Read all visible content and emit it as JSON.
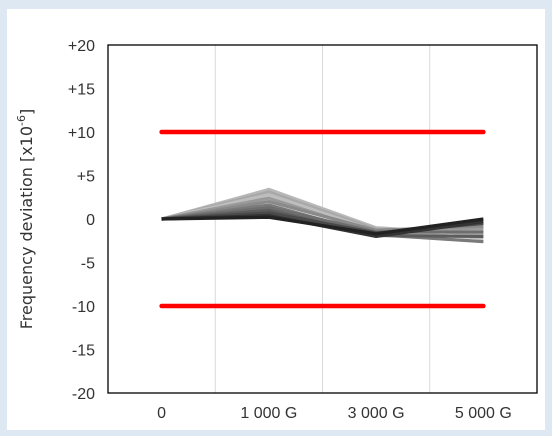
{
  "chart_data": {
    "type": "line",
    "ylabel_main": "Frequency deviation [x10",
    "ylabel_exp": "-6",
    "ylabel_end": "]",
    "xlabel": "",
    "categories": [
      "0",
      "1 000 G",
      "3 000 G",
      "5 000 G"
    ],
    "yticks": [
      "+20",
      "+15",
      "+10",
      "+5",
      "0",
      "-5",
      "-10",
      "-15",
      "-20"
    ],
    "ytick_values": [
      20,
      15,
      10,
      5,
      0,
      -5,
      -10,
      -15,
      -20
    ],
    "ylim": [
      -20,
      20
    ],
    "grid": "vertical",
    "limits": [
      {
        "values": [
          10,
          10,
          10,
          10
        ],
        "color": "#ff0000"
      },
      {
        "values": [
          -10,
          -10,
          -10,
          -10
        ],
        "color": "#ff0000"
      }
    ],
    "series": [
      {
        "values": [
          0,
          3.4,
          -1.0,
          -1.8
        ],
        "color": "#b8b8b8"
      },
      {
        "values": [
          0,
          3.1,
          -1.2,
          -1.3
        ],
        "color": "#a8a8a8"
      },
      {
        "values": [
          0,
          2.8,
          -1.4,
          -2.2
        ],
        "color": "#bdbdbd"
      },
      {
        "values": [
          0,
          2.4,
          -1.6,
          -1.0
        ],
        "color": "#999999"
      },
      {
        "values": [
          0,
          2.0,
          -1.3,
          -0.8
        ],
        "color": "#8a8a8a"
      },
      {
        "values": [
          0,
          1.6,
          -1.8,
          -2.6
        ],
        "color": "#7a7a7a"
      },
      {
        "values": [
          0,
          1.3,
          -1.5,
          -1.5
        ],
        "color": "#6e6e6e"
      },
      {
        "values": [
          0,
          1.0,
          -1.9,
          -2.0
        ],
        "color": "#5c5c5c"
      },
      {
        "values": [
          0,
          0.7,
          -1.6,
          -0.5
        ],
        "color": "#4a4a4a"
      },
      {
        "values": [
          0,
          0.4,
          -2.0,
          -0.3
        ],
        "color": "#333333"
      },
      {
        "values": [
          0,
          0.2,
          -1.7,
          0.0
        ],
        "color": "#222222"
      }
    ]
  }
}
